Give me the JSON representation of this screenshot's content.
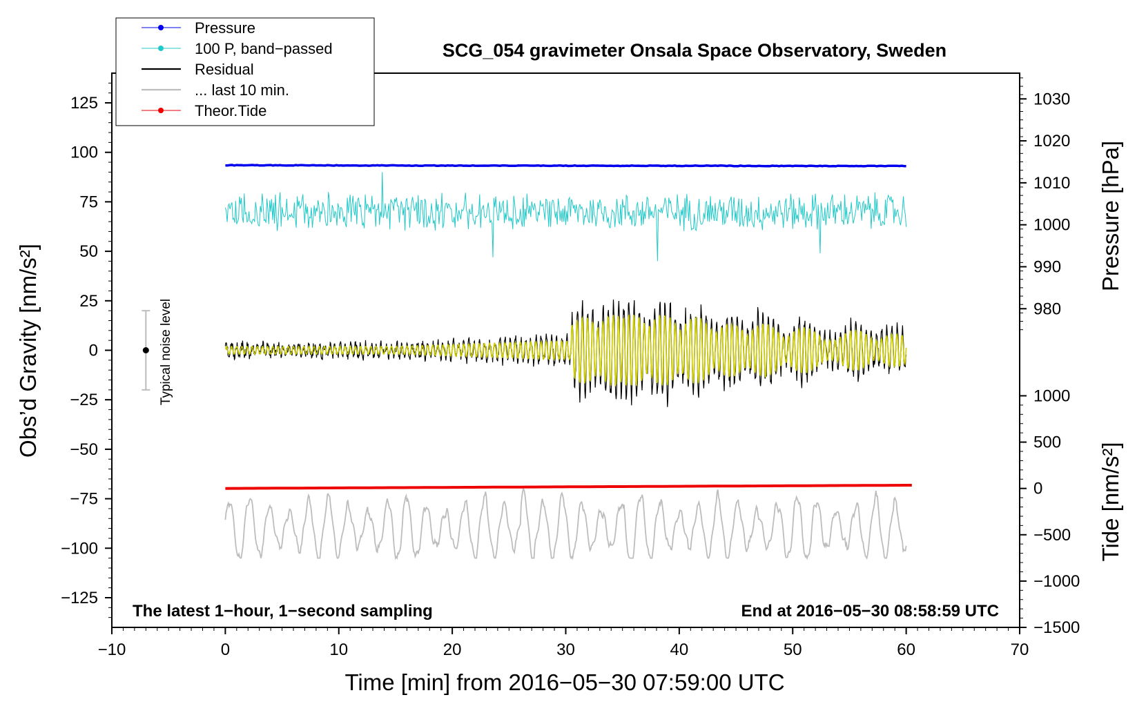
{
  "chart_data": {
    "type": "line",
    "title": "SCG_054 gravimeter Onsala Space Observatory, Sweden",
    "xlabel": "Time [min] from 2016−05−30 07:59:00 UTC",
    "ylabel": "Obs’d Gravity [nm/s²]",
    "xlim": [
      -10,
      70
    ],
    "ylim": [
      -140,
      140
    ],
    "x_ticks": [
      -10,
      0,
      10,
      20,
      30,
      40,
      50,
      60,
      70
    ],
    "x_tick_labels": [
      "−10",
      "0",
      "10",
      "20",
      "30",
      "40",
      "50",
      "60",
      "70"
    ],
    "y_ticks": [
      125,
      100,
      75,
      50,
      25,
      0,
      -25,
      -50,
      -75,
      -100,
      -125
    ],
    "y_tick_labels": [
      "125",
      "100",
      "75",
      "50",
      "25",
      "0",
      "−25",
      "−50",
      "−75",
      "−100",
      "−125"
    ],
    "right_axis_pressure": {
      "label": "Pressure [hPa]",
      "ticks": [
        1030,
        1020,
        1010,
        1000,
        990,
        980
      ],
      "tick_labels": [
        "1030",
        "1020",
        "1010",
        "1000",
        "990",
        "980"
      ],
      "map": {
        "hpa_a": 1030,
        "g_a": 127,
        "hpa_b": 980,
        "g_b": 21
      }
    },
    "right_axis_tide": {
      "label": "Tide [nm/s²]",
      "ticks": [
        1000,
        500,
        0,
        -500,
        -1000,
        -1500
      ],
      "tick_labels": [
        "1000",
        "500",
        "0",
        "−500",
        "−1000",
        "−1500"
      ],
      "map": {
        "tide_a": 1000,
        "g_a": -23,
        "tide_b": -1500,
        "g_b": -140
      }
    },
    "legend": [
      {
        "label": "Pressure",
        "color": "#0000ee",
        "marker": true
      },
      {
        "label": "100 P, band−passed",
        "color": "#22c8c8",
        "marker": true
      },
      {
        "label": "Residual",
        "color": "#000000",
        "marker": false
      },
      {
        "label": "... last 10 min.",
        "color": "#bdbdbd",
        "marker": false
      },
      {
        "label": "Theor.Tide",
        "color": "#ee0000",
        "marker": true
      }
    ],
    "annotations": {
      "bottom_left": "The latest 1−hour, 1−second sampling",
      "bottom_right": "End at 2016−05−30 08:58:59 UTC",
      "noise_label": "Typical noise level"
    },
    "noise_bar": {
      "x": -7,
      "center": 0,
      "half_range": 20
    },
    "series": [
      {
        "name": "Pressure",
        "color": "#0000ee",
        "x_range": [
          0,
          60
        ],
        "values_hpa": [
          1013.5,
          1013.4,
          1013.3,
          1013.3,
          1013.2,
          1013.2,
          1013.1,
          1013.1
        ],
        "plot_offset": 93.5
      },
      {
        "name": "100 P, band-passed",
        "color": "#22c8c8",
        "x_range": [
          0,
          60
        ],
        "center": 70,
        "amplitude_range": [
          -10,
          10
        ],
        "peaks": [
          [
            13.8,
            90
          ],
          [
            23.6,
            47
          ],
          [
            38.1,
            45
          ],
          [
            52.4,
            49
          ]
        ]
      },
      {
        "name": "Residual",
        "color": "#000000",
        "x_range": [
          0,
          60
        ],
        "center": 0,
        "max_envelope": 30,
        "min_envelope": -30,
        "onset_min": 30.5
      },
      {
        "name": "Band-passed residual",
        "color": "#cccc00",
        "x_range": [
          0,
          60
        ],
        "center": 0,
        "max_envelope": 18
      },
      {
        "name": "... last 10 min.",
        "color": "#bdbdbd",
        "x_range": [
          0,
          60
        ],
        "center": -90,
        "range": [
          -105,
          -68
        ]
      },
      {
        "name": "Theor.Tide",
        "color": "#ee0000",
        "x_range": [
          0,
          60.5
        ],
        "values_nms2": [
          0,
          5,
          10,
          15,
          20,
          25,
          30,
          35
        ]
      }
    ]
  }
}
